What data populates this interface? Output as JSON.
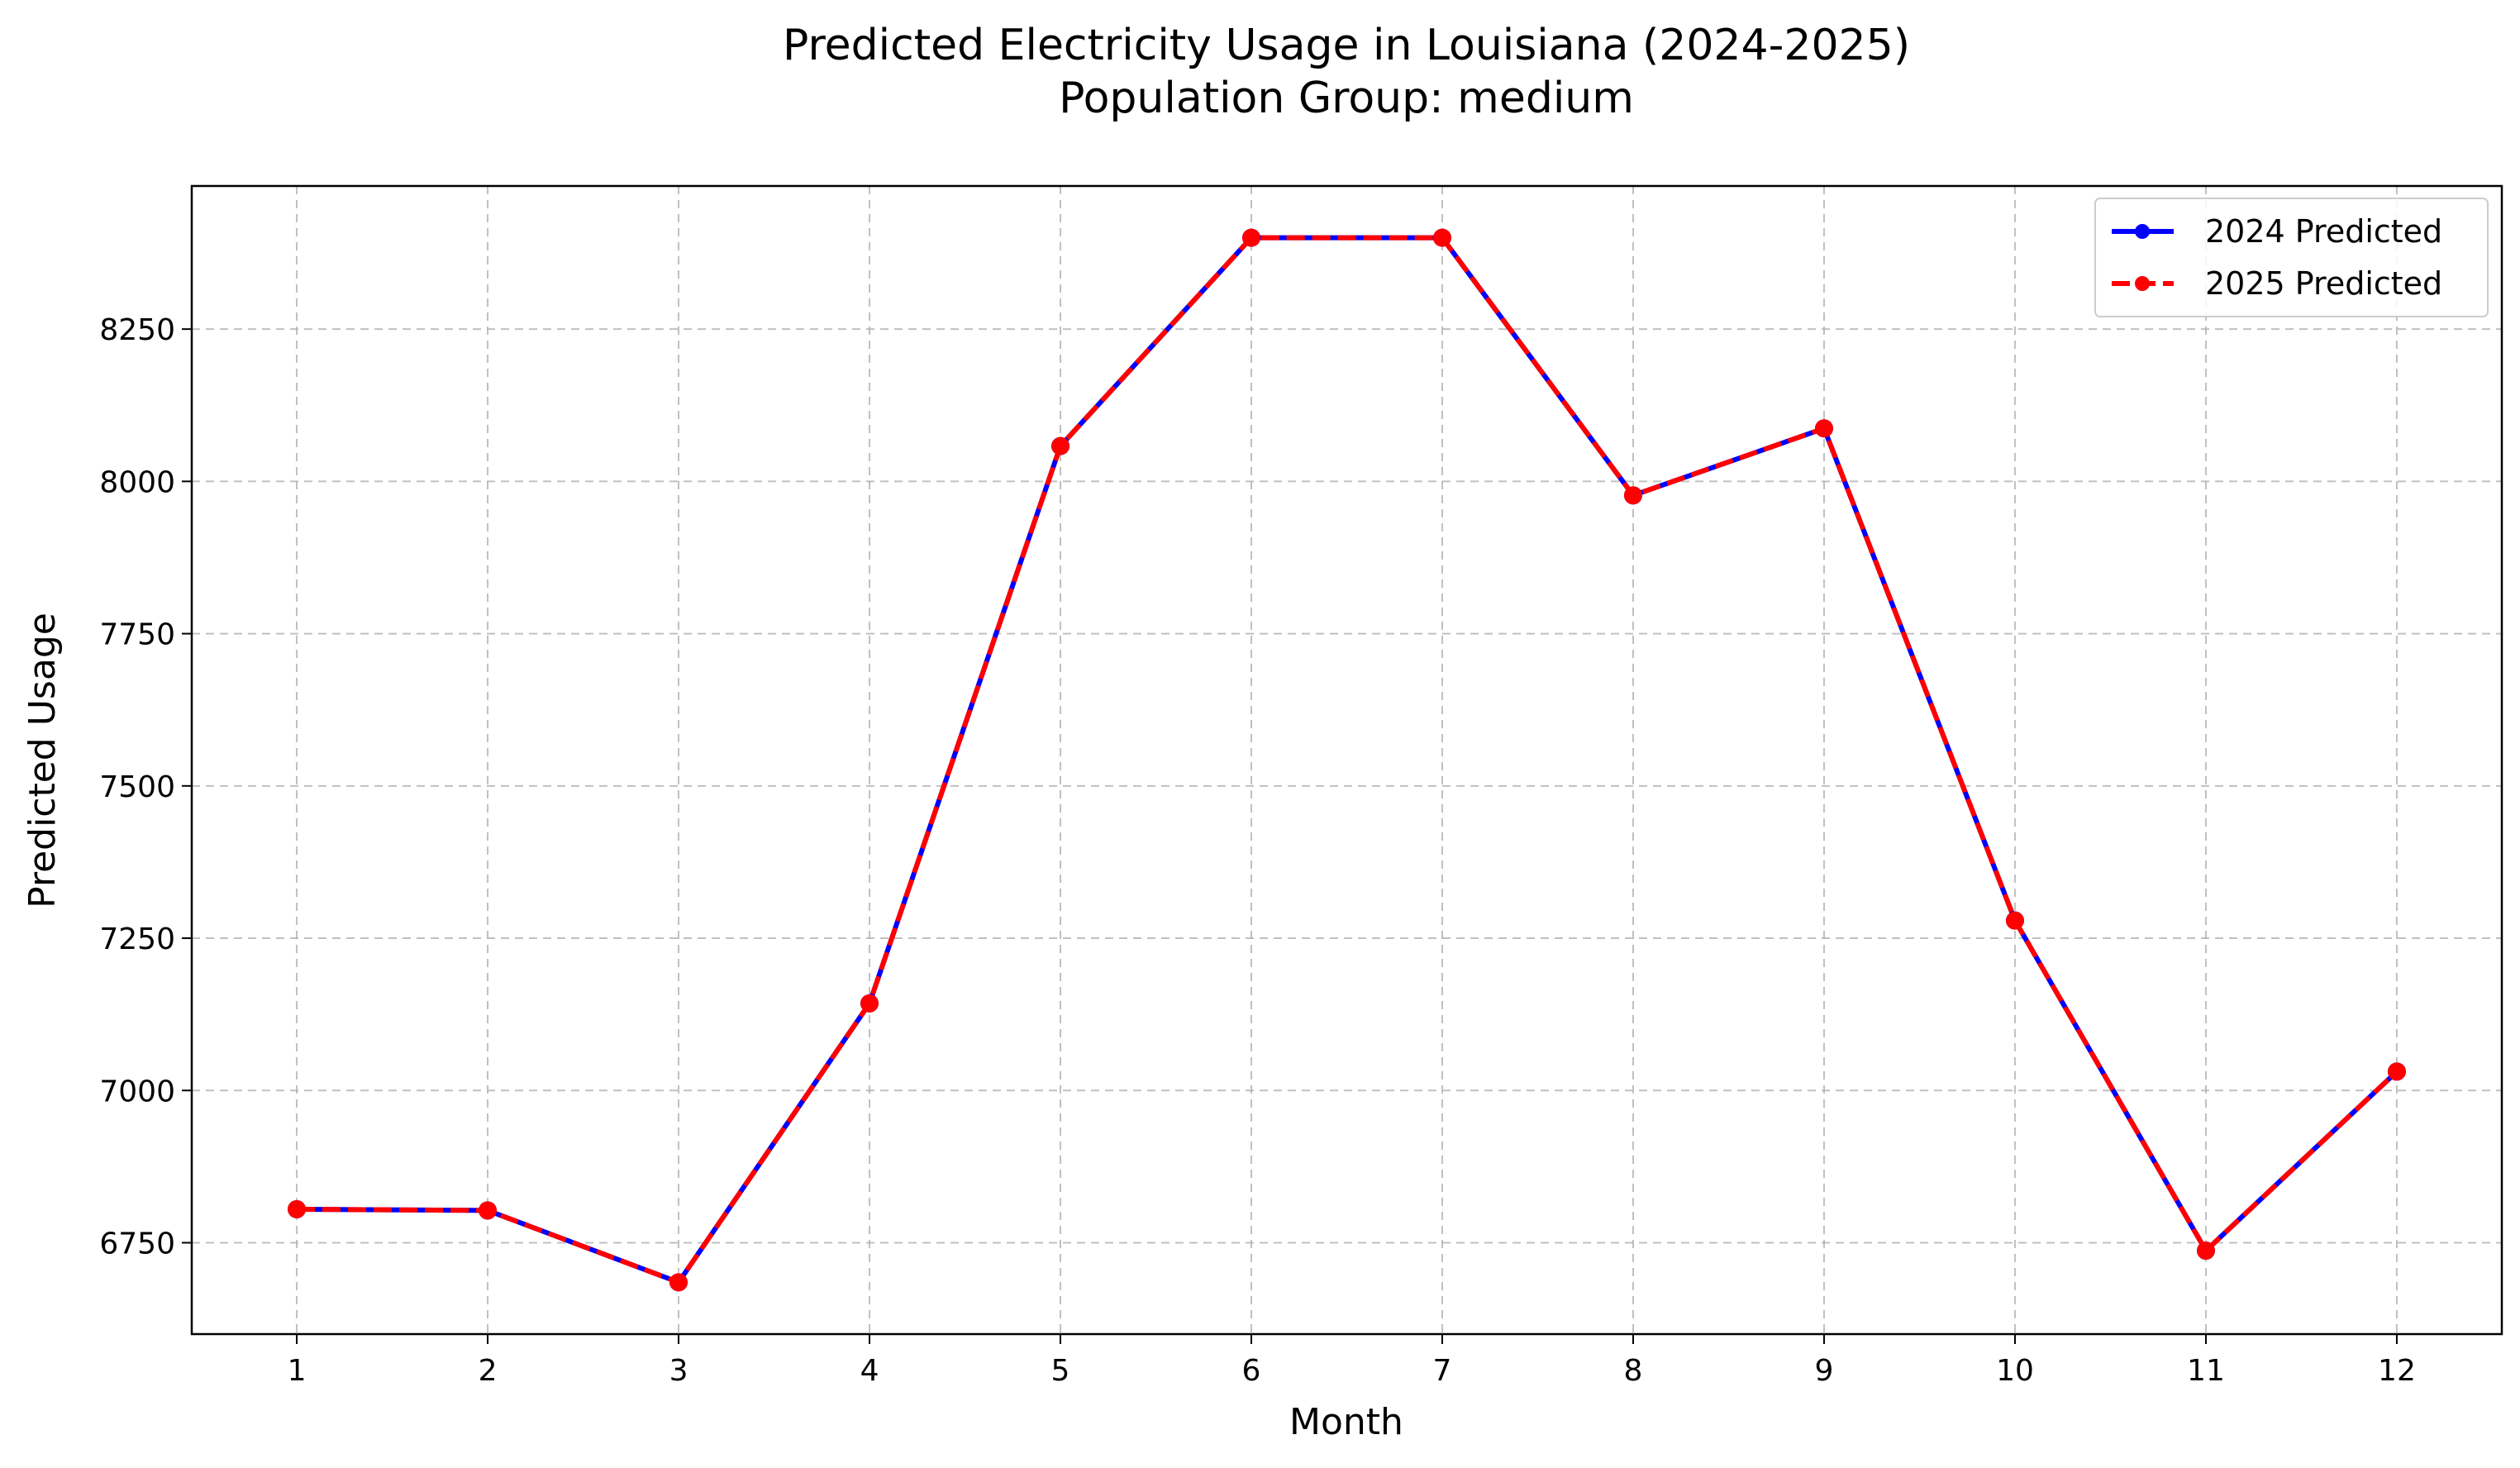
{
  "chart_data": {
    "type": "line",
    "title": "Predicted Electricity Usage in Louisiana (2024-2025)",
    "subtitle": "Population Group: medium",
    "xlabel": "Month",
    "ylabel": "Predicted Usage",
    "x": [
      1,
      2,
      3,
      4,
      5,
      6,
      7,
      8,
      9,
      10,
      11,
      12
    ],
    "xticks": [
      "1",
      "2",
      "3",
      "4",
      "5",
      "6",
      "7",
      "8",
      "9",
      "10",
      "11",
      "12"
    ],
    "yticks": [
      6750,
      7000,
      7250,
      7500,
      7750,
      8000,
      8250
    ],
    "ytick_labels": [
      "6750",
      "7000",
      "7250",
      "7500",
      "7750",
      "8000",
      "8250"
    ],
    "xlim": [
      0.45,
      12.55
    ],
    "ylim": [
      6600,
      8485
    ],
    "grid": true,
    "legend_position": "top-right",
    "series": [
      {
        "name": "2024 Predicted",
        "color": "#0000ff",
        "line_style": "solid",
        "marker": "circle",
        "values": [
          6805,
          6803,
          6685,
          7143,
          8058,
          8400,
          8400,
          7977,
          8087,
          7279,
          6737,
          7031
        ]
      },
      {
        "name": "2025 Predicted",
        "color": "#ff0000",
        "line_style": "dashed",
        "marker": "circle",
        "values": [
          6805,
          6803,
          6685,
          7143,
          8058,
          8400,
          8400,
          7977,
          8087,
          7279,
          6737,
          7031
        ]
      }
    ]
  }
}
